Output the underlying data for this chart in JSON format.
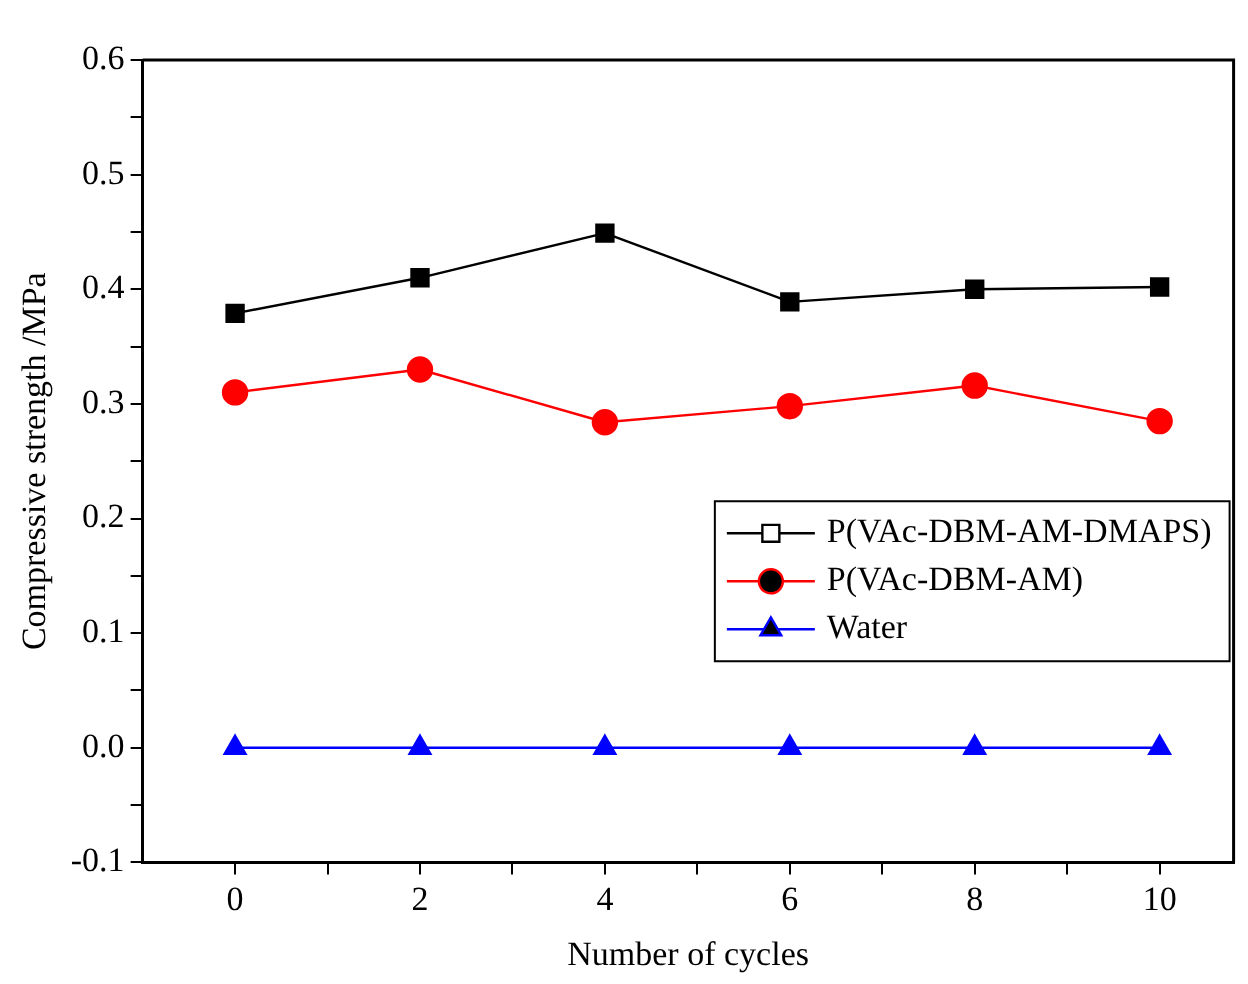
{
  "chart_data": {
    "type": "line",
    "xlabel": "Number of cycles",
    "ylabel": "Compressive strength /MPa",
    "x": [
      0,
      2,
      4,
      6,
      8,
      10
    ],
    "series": [
      {
        "name": "P(VAc-DBM-AM-DMAPS)",
        "color": "#000000",
        "marker": "square",
        "values": [
          0.379,
          0.41,
          0.449,
          0.389,
          0.4,
          0.402
        ]
      },
      {
        "name": "P(VAc-DBM-AM)",
        "color": "#ff0000",
        "marker": "circle",
        "values": [
          0.31,
          0.33,
          0.284,
          0.298,
          0.316,
          0.285
        ]
      },
      {
        "name": "Water",
        "color": "#0000ff",
        "marker": "triangle",
        "values": [
          0,
          0,
          0,
          0,
          0,
          0
        ]
      }
    ],
    "xlim": [
      -1,
      10.8
    ],
    "xticks": [
      0,
      {
        "value": 1,
        "label": null
      },
      2,
      {
        "value": 3,
        "label": null
      },
      4,
      {
        "value": 5,
        "label": null
      },
      6,
      {
        "value": 7,
        "label": null
      },
      8,
      {
        "value": 9,
        "label": null
      },
      10
    ],
    "ylim": [
      -0.1,
      0.6
    ],
    "yticks": [
      {
        "value": -0.1,
        "label": "-0.1"
      },
      {
        "value": -0.05,
        "label": null
      },
      {
        "value": 0,
        "label": "0.0"
      },
      {
        "value": 0.05,
        "label": null
      },
      {
        "value": 0.1,
        "label": "0.1"
      },
      {
        "value": 0.15,
        "label": null
      },
      {
        "value": 0.2,
        "label": "0.2"
      },
      {
        "value": 0.25,
        "label": null
      },
      {
        "value": 0.3,
        "label": "0.3"
      },
      {
        "value": 0.35,
        "label": null
      },
      {
        "value": 0.4,
        "label": "0.4"
      },
      {
        "value": 0.45,
        "label": null
      },
      {
        "value": 0.5,
        "label": "0.5"
      },
      {
        "value": 0.55,
        "label": null
      },
      {
        "value": 0.6,
        "label": "0.6"
      }
    ],
    "grid": false,
    "legend": "right",
    "line_style": "solid"
  }
}
